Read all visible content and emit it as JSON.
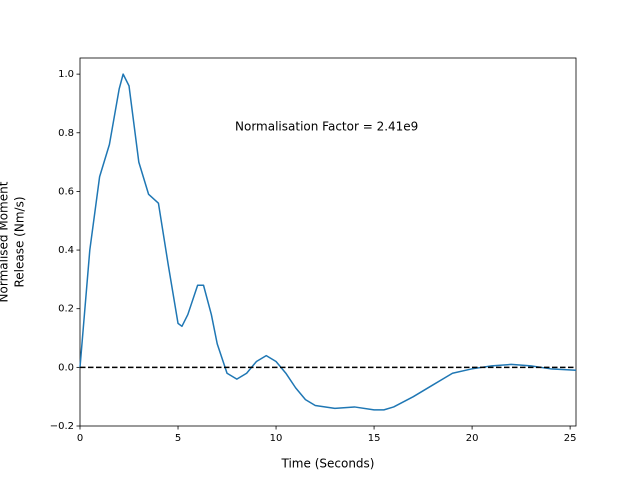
{
  "chart_data": {
    "type": "line",
    "xlabel": "Time (Seconds)",
    "ylabel": [
      "Normalised Moment",
      "Release (Nm/s)"
    ],
    "annotation": "Normalisation Factor = 2.41e9",
    "x": [
      0,
      0.5,
      1,
      1.5,
      2,
      2.2,
      2.5,
      3,
      3.5,
      4,
      4.5,
      5,
      5.2,
      5.5,
      6,
      6.3,
      6.7,
      7,
      7.5,
      8,
      8.5,
      9,
      9.5,
      10,
      10.5,
      11,
      11.5,
      12,
      13,
      14,
      15,
      15.5,
      16,
      17,
      18,
      19,
      20,
      21,
      22,
      23,
      24,
      25.3
    ],
    "series": [
      {
        "color": "#1f77b4",
        "values": [
          0,
          0.4,
          0.65,
          0.76,
          0.95,
          1.0,
          0.96,
          0.7,
          0.59,
          0.56,
          0.35,
          0.15,
          0.14,
          0.18,
          0.28,
          0.28,
          0.18,
          0.08,
          -0.02,
          -0.04,
          -0.02,
          0.02,
          0.04,
          0.02,
          -0.02,
          -0.07,
          -0.11,
          -0.13,
          -0.14,
          -0.135,
          -0.145,
          -0.145,
          -0.135,
          -0.1,
          -0.06,
          -0.02,
          -0.005,
          0.005,
          0.01,
          0.005,
          -0.005,
          -0.01
        ]
      }
    ],
    "hline": 0,
    "xlim": [
      0,
      25.3
    ],
    "ylim": [
      -0.2,
      1.055
    ],
    "xticks": [
      0,
      5,
      10,
      15,
      20,
      25
    ],
    "yticks": [
      {
        "value": -0.2,
        "label": "−0.2"
      },
      {
        "value": 0,
        "label": "0.0"
      },
      {
        "value": 0.2,
        "label": "0.2"
      },
      {
        "value": 0.4,
        "label": "0.4"
      },
      {
        "value": 0.6,
        "label": "0.6"
      },
      {
        "value": 0.8,
        "label": "0.8"
      },
      {
        "value": 1.0,
        "label": "1.0"
      }
    ]
  }
}
